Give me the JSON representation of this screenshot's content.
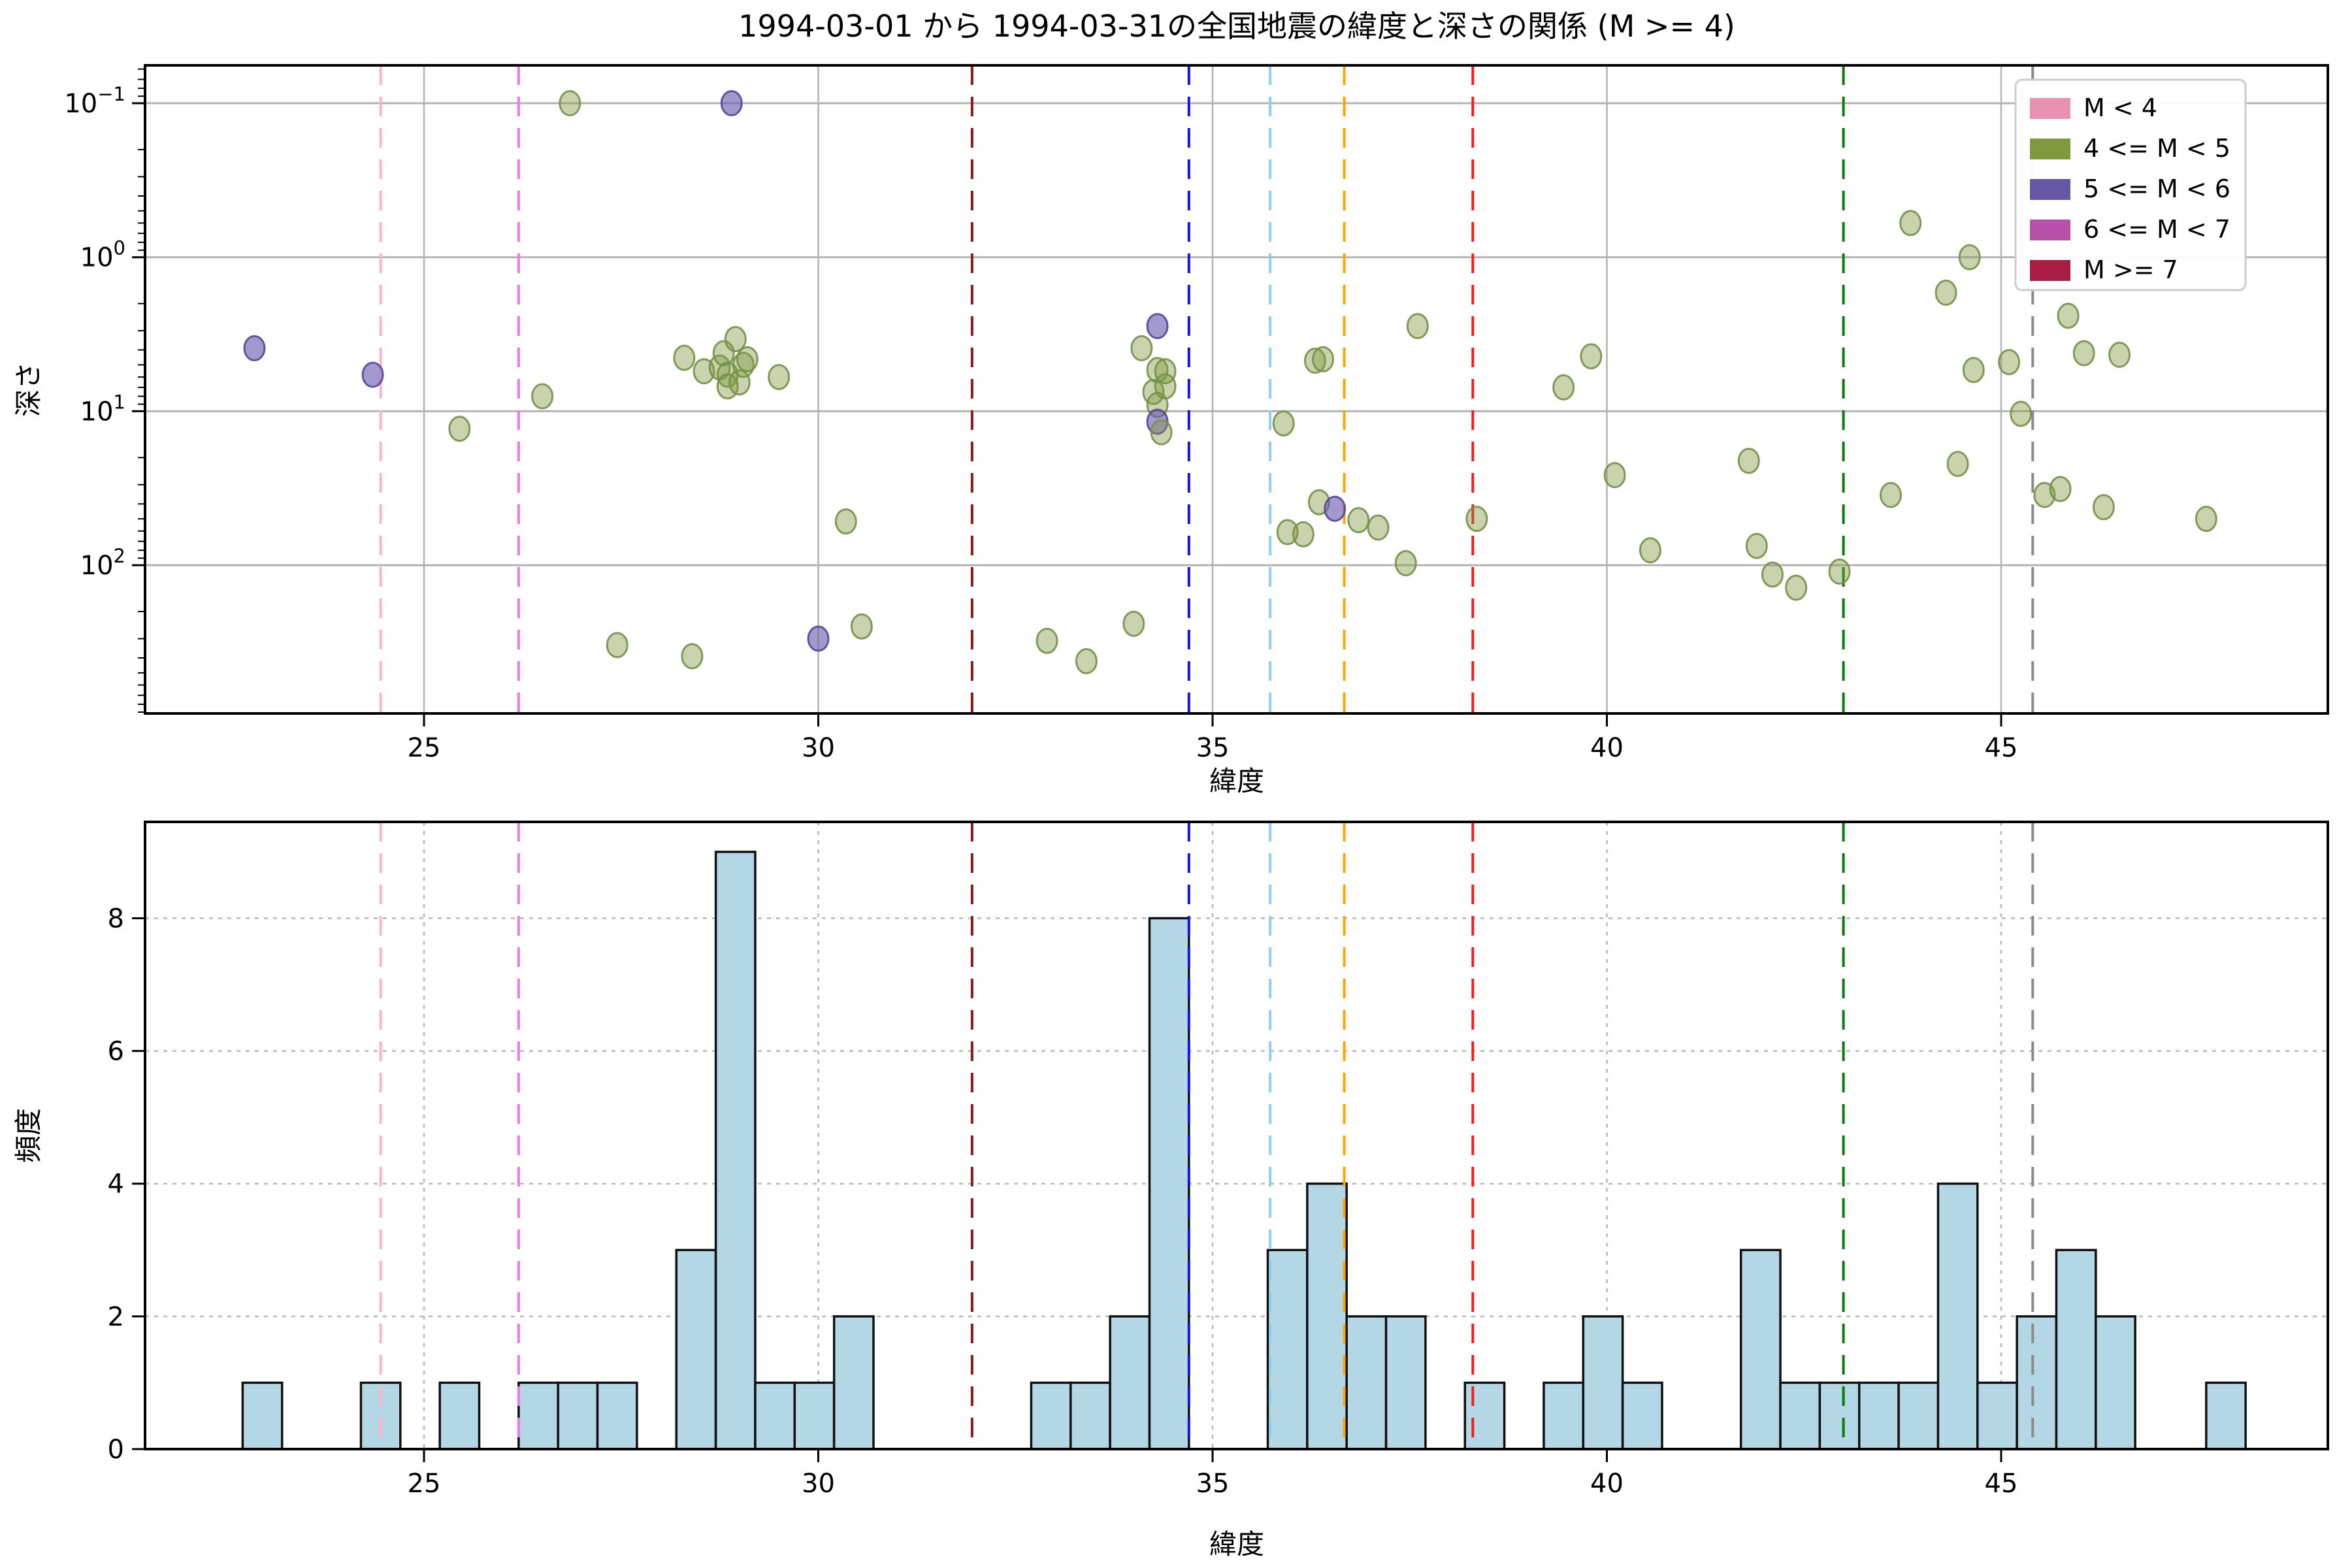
{
  "title": "1994-03-01 から 1994-03-31の全国地震の緯度と深さの関係 (M >= 4)",
  "legend": {
    "position": "upper right",
    "items": [
      {
        "label": "M < 4",
        "color": "#e891b2"
      },
      {
        "label": "4 <= M < 5",
        "color": "#7f993f"
      },
      {
        "label": "5 <= M < 6",
        "color": "#6656a5"
      },
      {
        "label": "6 <= M < 7",
        "color": "#b84fa9"
      },
      {
        "label": "M >= 7",
        "color": "#a91d45"
      }
    ]
  },
  "vlines": [
    {
      "lat": 24.45,
      "color": "#ffb3c8",
      "name": "pink-line"
    },
    {
      "lat": 26.2,
      "color": "#ee7ae5",
      "name": "violet-line"
    },
    {
      "lat": 31.95,
      "color": "#8b1a1a",
      "name": "darkred-line"
    },
    {
      "lat": 34.7,
      "color": "#1414e0",
      "name": "blue-line"
    },
    {
      "lat": 35.73,
      "color": "#8fd0ec",
      "name": "skyblue-line"
    },
    {
      "lat": 36.67,
      "color": "#ffa500",
      "name": "orange-line"
    },
    {
      "lat": 38.3,
      "color": "#f51920",
      "name": "red-line"
    },
    {
      "lat": 43.0,
      "color": "#0c7d0c",
      "name": "green-line"
    },
    {
      "lat": 45.4,
      "color": "#8a8a8a",
      "name": "gray-line"
    }
  ],
  "chart_data": [
    {
      "type": "scatter",
      "title": "",
      "xlabel": "緯度",
      "ylabel": "深さ",
      "x_ticks": [
        25,
        30,
        35,
        40,
        45
      ],
      "xlim": [
        21.46,
        49.14
      ],
      "y_scale": "log-inverted",
      "y_tick_exponents": [
        -1,
        0,
        1,
        2
      ],
      "ylim_log10": [
        -1.246,
        2.955
      ],
      "grid": "solid",
      "series_colors": {
        "4-5": "#7f993f",
        "5-6": "#6656a5"
      },
      "points": [
        [
          22.85,
          3.9,
          "5-6"
        ],
        [
          24.35,
          5.8,
          "5-6"
        ],
        [
          25.45,
          13,
          "4-5"
        ],
        [
          26.5,
          8,
          "4-5"
        ],
        [
          26.85,
          0.1,
          "4-5"
        ],
        [
          27.45,
          330,
          "4-5"
        ],
        [
          28.3,
          4.5,
          "4-5"
        ],
        [
          28.55,
          5.5,
          "4-5"
        ],
        [
          28.4,
          390,
          "4-5"
        ],
        [
          28.75,
          5.2,
          "4-5"
        ],
        [
          28.8,
          4.2,
          "4-5"
        ],
        [
          28.85,
          5.8,
          "4-5"
        ],
        [
          28.85,
          6.9,
          "4-5"
        ],
        [
          28.9,
          0.1,
          "5-6"
        ],
        [
          28.95,
          3.4,
          "4-5"
        ],
        [
          29.0,
          6.5,
          "4-5"
        ],
        [
          29.05,
          5.0,
          "4-5"
        ],
        [
          29.1,
          4.6,
          "4-5"
        ],
        [
          29.5,
          6.0,
          "4-5"
        ],
        [
          30.0,
          300,
          "5-6"
        ],
        [
          30.35,
          52,
          "4-5"
        ],
        [
          30.55,
          250,
          "4-5"
        ],
        [
          32.9,
          310,
          "4-5"
        ],
        [
          33.4,
          420,
          "4-5"
        ],
        [
          34.0,
          240,
          "4-5"
        ],
        [
          34.1,
          3.9,
          "4-5"
        ],
        [
          34.25,
          7.5,
          "4-5"
        ],
        [
          34.3,
          2.8,
          "5-6"
        ],
        [
          34.3,
          5.4,
          "4-5"
        ],
        [
          34.3,
          9.1,
          "4-5"
        ],
        [
          34.3,
          11.7,
          "5-6"
        ],
        [
          34.35,
          13.7,
          "4-5"
        ],
        [
          34.4,
          5.5,
          "4-5"
        ],
        [
          34.4,
          6.9,
          "4-5"
        ],
        [
          35.9,
          12,
          "4-5"
        ],
        [
          35.95,
          61,
          "4-5"
        ],
        [
          36.15,
          63,
          "4-5"
        ],
        [
          36.3,
          4.7,
          "4-5"
        ],
        [
          36.4,
          4.6,
          "4-5"
        ],
        [
          36.35,
          39,
          "4-5"
        ],
        [
          36.55,
          43,
          "5-6"
        ],
        [
          36.85,
          51,
          "4-5"
        ],
        [
          37.1,
          57,
          "4-5"
        ],
        [
          37.45,
          97,
          "4-5"
        ],
        [
          37.6,
          2.8,
          "4-5"
        ],
        [
          38.35,
          50,
          "4-5"
        ],
        [
          39.45,
          7,
          "4-5"
        ],
        [
          39.8,
          4.4,
          "4-5"
        ],
        [
          40.1,
          26,
          "4-5"
        ],
        [
          40.55,
          80,
          "4-5"
        ],
        [
          41.8,
          21,
          "4-5"
        ],
        [
          41.9,
          75,
          "4-5"
        ],
        [
          42.1,
          115,
          "4-5"
        ],
        [
          42.4,
          140,
          "4-5"
        ],
        [
          42.95,
          110,
          "4-5"
        ],
        [
          43.6,
          35,
          "4-5"
        ],
        [
          43.85,
          0.6,
          "4-5"
        ],
        [
          44.3,
          1.7,
          "4-5"
        ],
        [
          44.45,
          22,
          "4-5"
        ],
        [
          44.6,
          1.0,
          "4-5"
        ],
        [
          44.65,
          5.4,
          "4-5"
        ],
        [
          45.1,
          4.8,
          "4-5"
        ],
        [
          45.25,
          10.4,
          "4-5"
        ],
        [
          45.55,
          35,
          "4-5"
        ],
        [
          45.75,
          32,
          "4-5"
        ],
        [
          45.85,
          2.4,
          "4-5"
        ],
        [
          46.05,
          4.2,
          "4-5"
        ],
        [
          46.3,
          42,
          "4-5"
        ],
        [
          46.5,
          4.3,
          "4-5"
        ],
        [
          47.6,
          50,
          "4-5"
        ]
      ]
    },
    {
      "type": "bar",
      "title": "",
      "xlabel": "緯度",
      "ylabel": "頻度",
      "x_ticks": [
        25,
        30,
        35,
        40,
        45
      ],
      "xlim": [
        21.46,
        49.14
      ],
      "y_ticks": [
        0,
        2,
        4,
        6,
        8
      ],
      "ylim": [
        0,
        9.45
      ],
      "grid": "dashed",
      "bar_color": "#b4d7e6",
      "bar_edge_color": "#111111",
      "bin_width": 0.5,
      "bars": [
        [
          22.7,
          1
        ],
        [
          24.2,
          1
        ],
        [
          25.2,
          1
        ],
        [
          26.2,
          1
        ],
        [
          26.7,
          1
        ],
        [
          27.2,
          1
        ],
        [
          28.2,
          3
        ],
        [
          28.7,
          9
        ],
        [
          29.2,
          1
        ],
        [
          29.7,
          1
        ],
        [
          30.2,
          2
        ],
        [
          32.7,
          1
        ],
        [
          33.2,
          1
        ],
        [
          33.7,
          2
        ],
        [
          34.2,
          8
        ],
        [
          35.7,
          3
        ],
        [
          36.2,
          4
        ],
        [
          36.7,
          2
        ],
        [
          37.2,
          2
        ],
        [
          38.2,
          1
        ],
        [
          39.2,
          1
        ],
        [
          39.7,
          2
        ],
        [
          40.2,
          1
        ],
        [
          41.7,
          3
        ],
        [
          42.2,
          1
        ],
        [
          42.7,
          1
        ],
        [
          43.2,
          1
        ],
        [
          43.7,
          1
        ],
        [
          44.2,
          4
        ],
        [
          44.7,
          1
        ],
        [
          45.2,
          2
        ],
        [
          45.7,
          3
        ],
        [
          46.2,
          2
        ],
        [
          47.6,
          1
        ]
      ]
    }
  ]
}
